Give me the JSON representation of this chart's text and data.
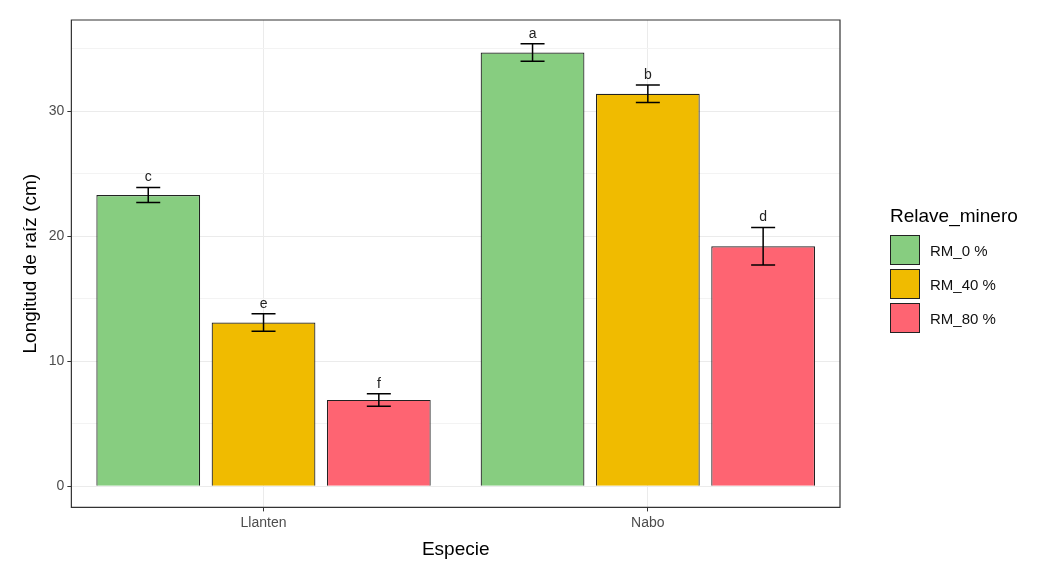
{
  "chart_data": {
    "type": "bar",
    "xlabel": "Especie",
    "ylabel": "Longitud de raíz (cm)",
    "legend_title": "Relave_minero",
    "categories": [
      "Llanten",
      "Nabo"
    ],
    "series": [
      {
        "name": "RM_0 %",
        "color": "#87cd80",
        "values": [
          23.3,
          34.7
        ],
        "errors": [
          0.6,
          0.7
        ]
      },
      {
        "name": "RM_40 %",
        "color": "#f0bb00",
        "values": [
          13.1,
          31.4
        ],
        "errors": [
          0.7,
          0.7
        ]
      },
      {
        "name": "RM_80 %",
        "color": "#fe6472",
        "values": [
          6.9,
          19.2
        ],
        "errors": [
          0.5,
          1.5
        ]
      }
    ],
    "ylim": [
      -1.7,
      37.3
    ],
    "yticks": [
      0,
      {
        "value": 5,
        "label": null
      },
      10,
      {
        "value": 15,
        "label": null
      },
      20,
      {
        "value": 25,
        "label": null
      },
      30,
      {
        "value": 35,
        "label": null
      }
    ],
    "grid": true,
    "legend": "right",
    "annotations": [
      "c",
      "a",
      "e",
      "b",
      "f",
      "d"
    ]
  }
}
